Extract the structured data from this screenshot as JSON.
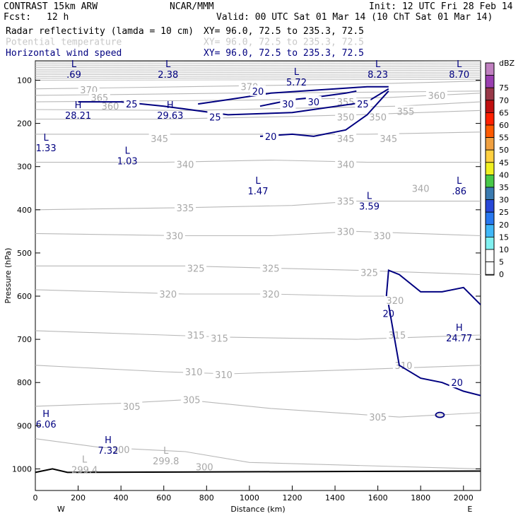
{
  "header": {
    "model": "CONTRAST 15km ARW",
    "org": "NCAR/MMM",
    "init": "Init: 12 UTC Fri 28 Feb 14",
    "fcst_label": "Fcst:",
    "fcst_value": "12 h",
    "valid": "Valid: 00 UTC Sat 01 Mar 14 (10 ChT Sat 01 Mar 14)",
    "fields": [
      {
        "name": "Radar reflectivity (lamda = 10 cm)",
        "xy": "XY=  96.0, 72.5 to 235.3, 72.5",
        "color": "#000000"
      },
      {
        "name": "Potential temperature",
        "xy": "XY=  96.0, 72.5 to 235.3, 72.5",
        "color": "#c8c8c8"
      },
      {
        "name": "Horizontal wind speed",
        "xy": "XY=  96.0, 72.5 to 235.3, 72.5",
        "color": "#000080"
      }
    ]
  },
  "colorbar": {
    "unit": "dBZ",
    "levels": [
      "75",
      "70",
      "65",
      "60",
      "55",
      "50",
      "45",
      "40",
      "35",
      "30",
      "25",
      "20",
      "15",
      "10",
      "5",
      "0"
    ],
    "colors": [
      "#c080c0",
      "#9a3fb0",
      "#983848",
      "#c01010",
      "#ff2000",
      "#ff5a00",
      "#f0a040",
      "#ffd040",
      "#f0f020",
      "#48c848",
      "#3a7ab0",
      "#2848d8",
      "#2878f0",
      "#40b8f8",
      "#80f0f0",
      "#ffffff",
      "#ffffff"
    ]
  },
  "chart_data": {
    "type": "contour-cross-section",
    "xlabel": "Distance (km)",
    "ylabel": "Pressure (hPa)",
    "xlim": [
      0,
      2080
    ],
    "ylim": [
      1050,
      55
    ],
    "x_ticks": [
      0,
      200,
      400,
      600,
      800,
      1000,
      1200,
      1400,
      1600,
      1800,
      2000
    ],
    "y_ticks": [
      100,
      200,
      300,
      400,
      500,
      600,
      700,
      800,
      900,
      1000
    ],
    "x_end_labels": {
      "left": "W",
      "right": "E"
    },
    "theta_lines": [
      {
        "value": 370,
        "points": [
          [
            0,
            120
          ],
          [
            300,
            118
          ],
          [
            700,
            115
          ],
          [
            1100,
            112
          ],
          [
            1600,
            108
          ],
          [
            2080,
            102
          ]
        ],
        "labels": [
          [
            250,
            122
          ],
          [
            1000,
            115
          ]
        ]
      },
      {
        "value": 365,
        "points": [
          [
            0,
            135
          ],
          [
            400,
            133
          ],
          [
            900,
            130
          ],
          [
            1500,
            128
          ],
          [
            2080,
            125
          ]
        ],
        "labels": [
          [
            300,
            140
          ]
        ]
      },
      {
        "value": 360,
        "points": [
          [
            0,
            150
          ],
          [
            500,
            148
          ],
          [
            1000,
            146
          ],
          [
            1650,
            140
          ],
          [
            2080,
            130
          ]
        ],
        "labels": [
          [
            350,
            160
          ],
          [
            1875,
            135
          ]
        ]
      },
      {
        "value": 355,
        "points": [
          [
            0,
            168
          ],
          [
            700,
            170
          ],
          [
            1200,
            165
          ],
          [
            1700,
            160
          ],
          [
            2080,
            150
          ]
        ],
        "labels": [
          [
            1450,
            150
          ],
          [
            1730,
            172
          ]
        ]
      },
      {
        "value": 350,
        "points": [
          [
            0,
            190
          ],
          [
            600,
            190
          ],
          [
            1100,
            185
          ],
          [
            1500,
            180
          ],
          [
            2080,
            170
          ]
        ],
        "labels": [
          [
            1450,
            185
          ],
          [
            1600,
            185
          ]
        ]
      },
      {
        "value": 345,
        "points": [
          [
            0,
            225
          ],
          [
            600,
            225
          ],
          [
            1100,
            225
          ],
          [
            1550,
            225
          ],
          [
            2080,
            220
          ]
        ],
        "labels": [
          [
            580,
            235
          ],
          [
            1450,
            235
          ],
          [
            1650,
            235
          ]
        ]
      },
      {
        "value": 340,
        "points": [
          [
            0,
            290
          ],
          [
            600,
            290
          ],
          [
            1100,
            285
          ],
          [
            1550,
            290
          ],
          [
            2080,
            290
          ]
        ],
        "labels": [
          [
            700,
            295
          ],
          [
            1450,
            295
          ],
          [
            1800,
            350
          ]
        ]
      },
      {
        "value": 335,
        "points": [
          [
            0,
            400
          ],
          [
            700,
            395
          ],
          [
            1200,
            390
          ],
          [
            1500,
            380
          ],
          [
            2080,
            380
          ]
        ],
        "labels": [
          [
            700,
            395
          ],
          [
            1450,
            380
          ]
        ]
      },
      {
        "value": 330,
        "points": [
          [
            0,
            455
          ],
          [
            700,
            460
          ],
          [
            1100,
            460
          ],
          [
            1500,
            450
          ],
          [
            2080,
            460
          ]
        ],
        "labels": [
          [
            650,
            460
          ],
          [
            1450,
            450
          ],
          [
            1620,
            460
          ]
        ]
      },
      {
        "value": 325,
        "points": [
          [
            0,
            530
          ],
          [
            700,
            530
          ],
          [
            1100,
            535
          ],
          [
            1500,
            540
          ],
          [
            2080,
            550
          ]
        ],
        "labels": [
          [
            750,
            535
          ],
          [
            1100,
            535
          ],
          [
            1560,
            545
          ]
        ]
      },
      {
        "value": 320,
        "points": [
          [
            0,
            585
          ],
          [
            700,
            595
          ],
          [
            1100,
            595
          ],
          [
            1500,
            600
          ],
          [
            1650,
            600
          ]
        ],
        "labels": [
          [
            620,
            595
          ],
          [
            1100,
            595
          ],
          [
            1680,
            610
          ]
        ]
      },
      {
        "value": 315,
        "points": [
          [
            0,
            680
          ],
          [
            600,
            690
          ],
          [
            900,
            695
          ],
          [
            1500,
            700
          ],
          [
            2080,
            690
          ]
        ],
        "labels": [
          [
            750,
            690
          ],
          [
            860,
            697
          ],
          [
            1690,
            690
          ]
        ]
      },
      {
        "value": 310,
        "points": [
          [
            0,
            760
          ],
          [
            600,
            775
          ],
          [
            900,
            780
          ],
          [
            1500,
            770
          ],
          [
            2080,
            760
          ]
        ],
        "labels": [
          [
            740,
            775
          ],
          [
            880,
            782
          ],
          [
            1720,
            760
          ]
        ]
      },
      {
        "value": 305,
        "points": [
          [
            0,
            855
          ],
          [
            400,
            848
          ],
          [
            700,
            840
          ],
          [
            1100,
            860
          ],
          [
            1700,
            880
          ],
          [
            2080,
            870
          ]
        ],
        "labels": [
          [
            450,
            855
          ],
          [
            730,
            840
          ],
          [
            1600,
            880
          ]
        ]
      },
      {
        "value": 300,
        "points": [
          [
            0,
            930
          ],
          [
            300,
            950
          ],
          [
            700,
            960
          ],
          [
            1000,
            985
          ],
          [
            2080,
            1000
          ]
        ],
        "labels": [
          [
            400,
            955
          ],
          [
            790,
            995
          ]
        ]
      }
    ],
    "wind_contours": [
      {
        "value": 20,
        "points": [
          [
            760,
            155
          ],
          [
            900,
            145
          ],
          [
            1100,
            130
          ],
          [
            1400,
            120
          ],
          [
            1550,
            115
          ],
          [
            1650,
            115
          ]
        ],
        "labels": [
          [
            1040,
            125
          ]
        ]
      },
      {
        "value": 20,
        "points": [
          [
            1050,
            230
          ],
          [
            1200,
            225
          ],
          [
            1300,
            230
          ],
          [
            1450,
            215
          ],
          [
            1550,
            180
          ],
          [
            1650,
            125
          ]
        ],
        "labels": [
          [
            1100,
            230
          ]
        ]
      },
      {
        "value": 20,
        "points": [
          [
            1640,
            600
          ],
          [
            1650,
            540
          ],
          [
            1700,
            550
          ],
          [
            1800,
            590
          ],
          [
            1900,
            590
          ],
          [
            2000,
            580
          ],
          [
            2080,
            620
          ]
        ],
        "labels": [
          [
            1650,
            640
          ]
        ]
      },
      {
        "value": 20,
        "points": [
          [
            1650,
            620
          ],
          [
            1700,
            760
          ],
          [
            1800,
            790
          ],
          [
            1900,
            800
          ],
          [
            2000,
            820
          ],
          [
            2080,
            830
          ]
        ],
        "labels": [
          [
            1970,
            800
          ]
        ]
      },
      {
        "value": 25,
        "points": [
          [
            200,
            150
          ],
          [
            400,
            150
          ],
          [
            600,
            160
          ],
          [
            900,
            180
          ],
          [
            1200,
            175
          ],
          [
            1550,
            150
          ],
          [
            1650,
            120
          ]
        ],
        "labels": [
          [
            450,
            155
          ],
          [
            840,
            185
          ],
          [
            1530,
            155
          ]
        ]
      },
      {
        "value": 30,
        "points": [
          [
            1050,
            160
          ],
          [
            1200,
            145
          ],
          [
            1300,
            140
          ],
          [
            1450,
            130
          ],
          [
            1500,
            125
          ]
        ],
        "labels": [
          [
            1180,
            155
          ],
          [
            1300,
            150
          ]
        ]
      }
    ],
    "markers": [
      {
        "kind": "L",
        "value": ".69",
        "x": 180,
        "y": 70
      },
      {
        "kind": "L",
        "value": "2.38",
        "x": 620,
        "y": 70
      },
      {
        "kind": "L",
        "value": "5.72",
        "x": 1220,
        "y": 88
      },
      {
        "kind": "L",
        "value": "8.23",
        "x": 1600,
        "y": 70
      },
      {
        "kind": "L",
        "value": "8.70",
        "x": 1980,
        "y": 70
      },
      {
        "kind": "H",
        "value": "28.21",
        "x": 200,
        "y": 165
      },
      {
        "kind": "H",
        "value": "29.63",
        "x": 630,
        "y": 165
      },
      {
        "kind": "L",
        "value": "1.33",
        "x": 50,
        "y": 240
      },
      {
        "kind": "L",
        "value": "1.03",
        "x": 430,
        "y": 270
      },
      {
        "kind": "L",
        "value": "1.47",
        "x": 1040,
        "y": 340
      },
      {
        "kind": "L",
        "value": "3.59",
        "x": 1560,
        "y": 375
      },
      {
        "kind": "L",
        "value": ".86",
        "x": 1980,
        "y": 340
      },
      {
        "kind": "H",
        "value": "24.77",
        "x": 1980,
        "y": 680
      },
      {
        "kind": "H",
        "value": "6.06",
        "x": 50,
        "y": 880
      },
      {
        "kind": "H",
        "value": "7.32",
        "x": 340,
        "y": 940
      },
      {
        "kind": "L",
        "value": "299.4",
        "x": 230,
        "y": 985
      },
      {
        "kind": "L",
        "value": "299.8",
        "x": 610,
        "y": 965
      }
    ]
  }
}
